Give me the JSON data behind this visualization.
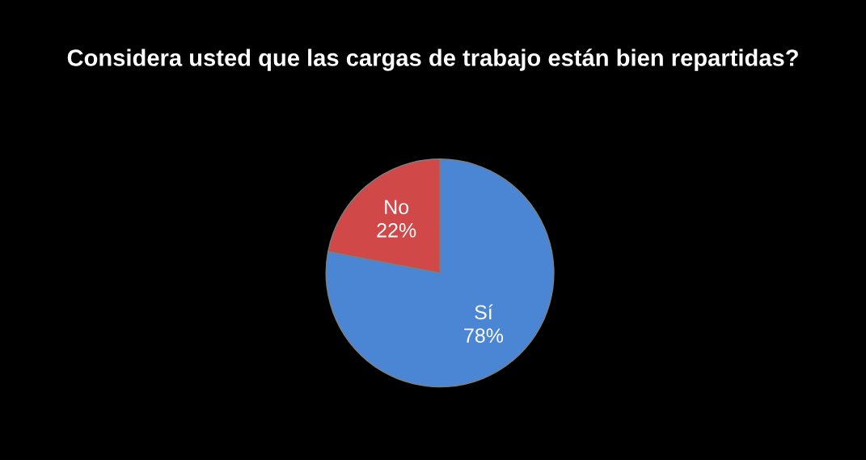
{
  "chart_data": {
    "type": "pie",
    "title": "Considera usted que las cargas de trabajo están bien repartidas?",
    "categories": [
      "Sí",
      "No"
    ],
    "values": [
      78,
      22
    ],
    "colors": [
      "#4a86d4",
      "#d04848"
    ],
    "value_labels": [
      "78%",
      "22%"
    ],
    "legend": false
  }
}
